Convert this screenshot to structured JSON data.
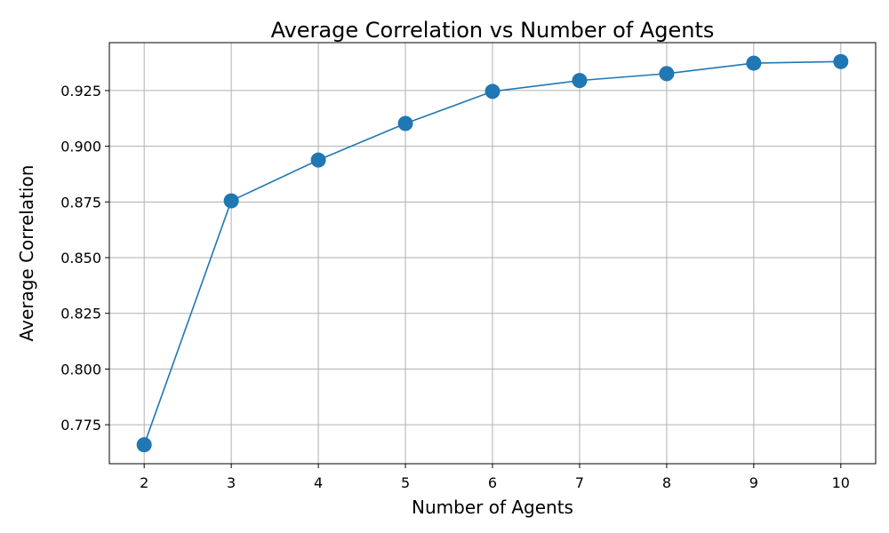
{
  "chart_data": {
    "type": "line",
    "title": "Average Correlation vs Number of Agents",
    "xlabel": "Number of Agents",
    "ylabel": "Average Correlation",
    "x": [
      2,
      3,
      4,
      5,
      6,
      7,
      8,
      9,
      10
    ],
    "series": [
      {
        "values": [
          0.766,
          0.8755,
          0.8938,
          0.9102,
          0.9246,
          0.9295,
          0.9326,
          0.9373,
          0.938
        ],
        "color": "#1f77b4",
        "marker": "circle"
      }
    ],
    "xlim": [
      1.6,
      10.4
    ],
    "ylim": [
      0.7575,
      0.9465
    ],
    "xticks": [
      2,
      3,
      4,
      5,
      6,
      7,
      8,
      9,
      10
    ],
    "xtick_labels": [
      "2",
      "3",
      "4",
      "5",
      "6",
      "7",
      "8",
      "9",
      "10"
    ],
    "yticks": [
      0.775,
      0.8,
      0.825,
      0.85,
      0.875,
      0.9,
      0.925
    ],
    "ytick_labels": [
      "0.775",
      "0.800",
      "0.825",
      "0.850",
      "0.875",
      "0.900",
      "0.925"
    ],
    "grid": true,
    "legend": "none"
  }
}
